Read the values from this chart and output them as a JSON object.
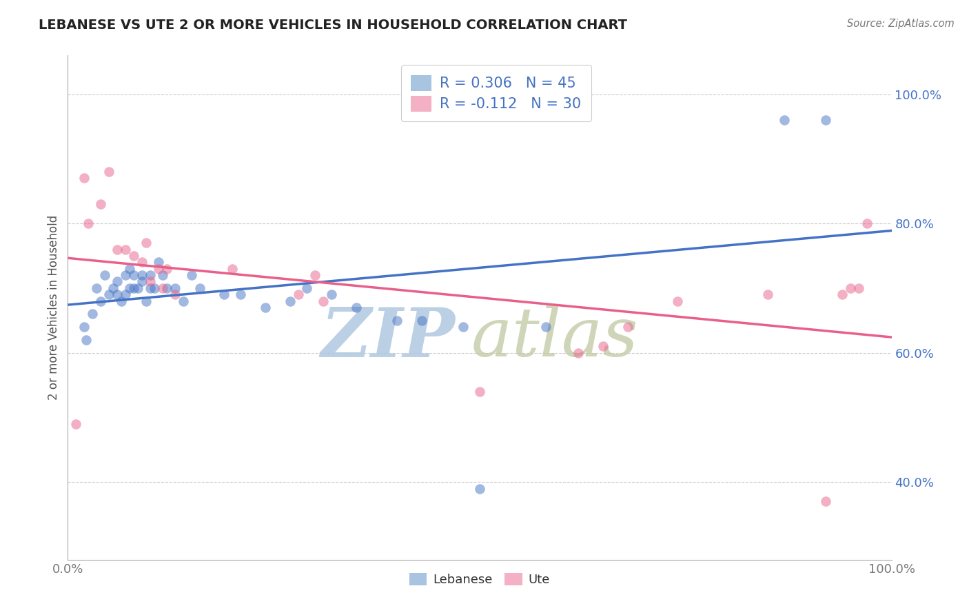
{
  "title": "LEBANESE VS UTE 2 OR MORE VEHICLES IN HOUSEHOLD CORRELATION CHART",
  "source": "Source: ZipAtlas.com",
  "ylabel": "2 or more Vehicles in Household",
  "xlim": [
    0.0,
    1.0
  ],
  "ylim": [
    0.28,
    1.06
  ],
  "xticks": [
    0.0,
    0.2,
    0.4,
    0.6,
    0.8,
    1.0
  ],
  "xticklabels": [
    "0.0%",
    "",
    "",
    "",
    "",
    "100.0%"
  ],
  "ytick_positions": [
    0.4,
    0.6,
    0.8,
    1.0
  ],
  "yticklabels": [
    "40.0%",
    "60.0%",
    "80.0%",
    "100.0%"
  ],
  "watermark_zip": "ZIP",
  "watermark_atlas": "atlas",
  "blue_scatter_x": [
    0.02,
    0.022,
    0.03,
    0.035,
    0.04,
    0.045,
    0.05,
    0.055,
    0.06,
    0.06,
    0.065,
    0.07,
    0.07,
    0.075,
    0.075,
    0.08,
    0.08,
    0.085,
    0.09,
    0.09,
    0.095,
    0.1,
    0.1,
    0.105,
    0.11,
    0.115,
    0.12,
    0.13,
    0.14,
    0.15,
    0.16,
    0.19,
    0.21,
    0.24,
    0.27,
    0.29,
    0.32,
    0.35,
    0.4,
    0.43,
    0.48,
    0.5,
    0.58,
    0.87,
    0.92
  ],
  "blue_scatter_y": [
    0.64,
    0.62,
    0.66,
    0.7,
    0.68,
    0.72,
    0.69,
    0.7,
    0.71,
    0.69,
    0.68,
    0.72,
    0.69,
    0.73,
    0.7,
    0.72,
    0.7,
    0.7,
    0.72,
    0.71,
    0.68,
    0.72,
    0.7,
    0.7,
    0.74,
    0.72,
    0.7,
    0.7,
    0.68,
    0.72,
    0.7,
    0.69,
    0.69,
    0.67,
    0.68,
    0.7,
    0.69,
    0.67,
    0.65,
    0.65,
    0.64,
    0.39,
    0.64,
    0.96,
    0.96
  ],
  "pink_scatter_x": [
    0.01,
    0.02,
    0.025,
    0.04,
    0.05,
    0.06,
    0.07,
    0.08,
    0.09,
    0.095,
    0.1,
    0.11,
    0.115,
    0.12,
    0.13,
    0.2,
    0.28,
    0.3,
    0.31,
    0.5,
    0.62,
    0.65,
    0.68,
    0.74,
    0.85,
    0.92,
    0.94,
    0.95,
    0.96,
    0.97
  ],
  "pink_scatter_y": [
    0.49,
    0.87,
    0.8,
    0.83,
    0.88,
    0.76,
    0.76,
    0.75,
    0.74,
    0.77,
    0.71,
    0.73,
    0.7,
    0.73,
    0.69,
    0.73,
    0.69,
    0.72,
    0.68,
    0.54,
    0.6,
    0.61,
    0.64,
    0.68,
    0.69,
    0.37,
    0.69,
    0.7,
    0.7,
    0.8
  ],
  "blue_line_color": "#4472c4",
  "pink_line_color": "#e8608a",
  "dot_alpha": 0.5,
  "dot_size": 110,
  "background_color": "#ffffff",
  "grid_color": "#cccccc",
  "title_color": "#222222",
  "source_color": "#777777",
  "watermark_color": "#c8d8ec",
  "watermark_color2": "#c8d4b8",
  "legend_text_color": "#4472c4",
  "axis_color": "#aaaaaa",
  "tick_color": "#777777"
}
